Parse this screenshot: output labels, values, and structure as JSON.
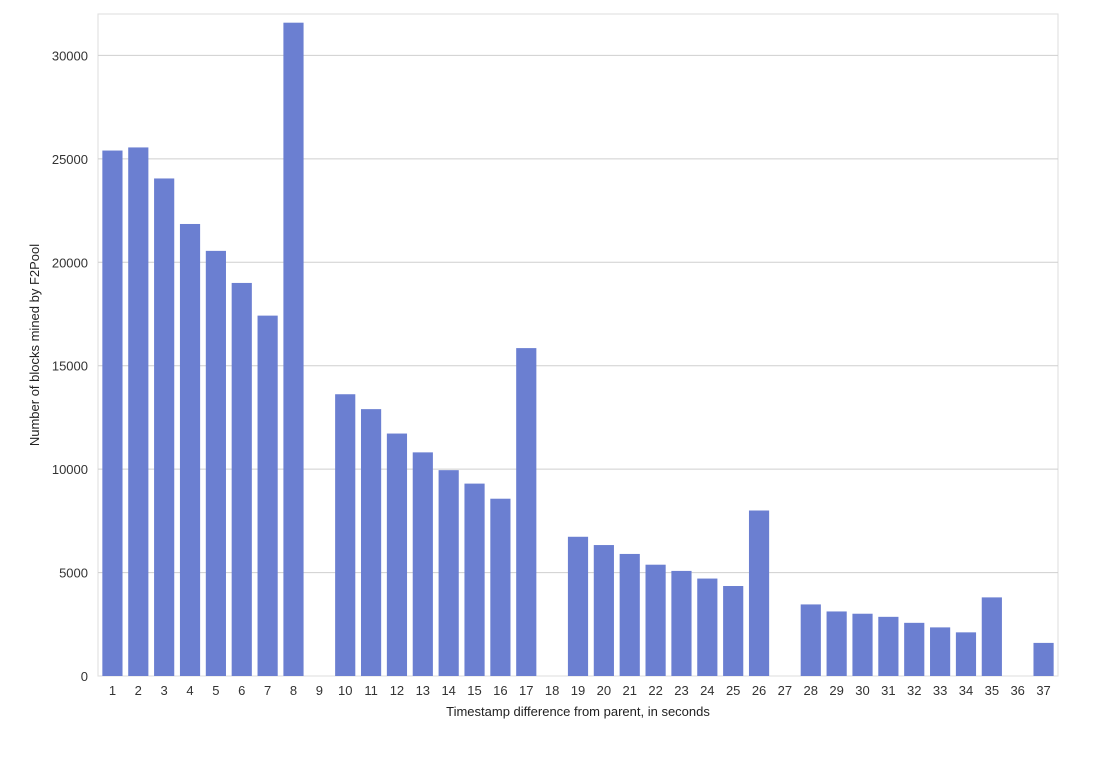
{
  "chart_data": {
    "type": "bar",
    "xlabel": "Timestamp difference from parent, in seconds",
    "ylabel": "Number of blocks mined by F2Pool",
    "ylim": [
      0,
      32000
    ],
    "yticks": [
      0,
      5000,
      10000,
      15000,
      20000,
      25000,
      30000
    ],
    "grid": true,
    "bar_color": "#6b7fd1",
    "categories": [
      "1",
      "2",
      "3",
      "4",
      "5",
      "6",
      "7",
      "8",
      "9",
      "10",
      "11",
      "12",
      "13",
      "14",
      "15",
      "16",
      "17",
      "18",
      "19",
      "20",
      "21",
      "22",
      "23",
      "24",
      "25",
      "26",
      "27",
      "28",
      "29",
      "30",
      "31",
      "32",
      "33",
      "34",
      "35",
      "36",
      "37"
    ],
    "values": [
      25400,
      25550,
      24050,
      21850,
      20550,
      19000,
      17420,
      31580,
      0,
      13620,
      12900,
      11720,
      10810,
      9950,
      9300,
      8570,
      15850,
      0,
      6730,
      6330,
      5900,
      5380,
      5080,
      4710,
      4350,
      8000,
      0,
      3460,
      3120,
      3010,
      2860,
      2570,
      2350,
      2110,
      3800,
      0,
      1600
    ]
  }
}
